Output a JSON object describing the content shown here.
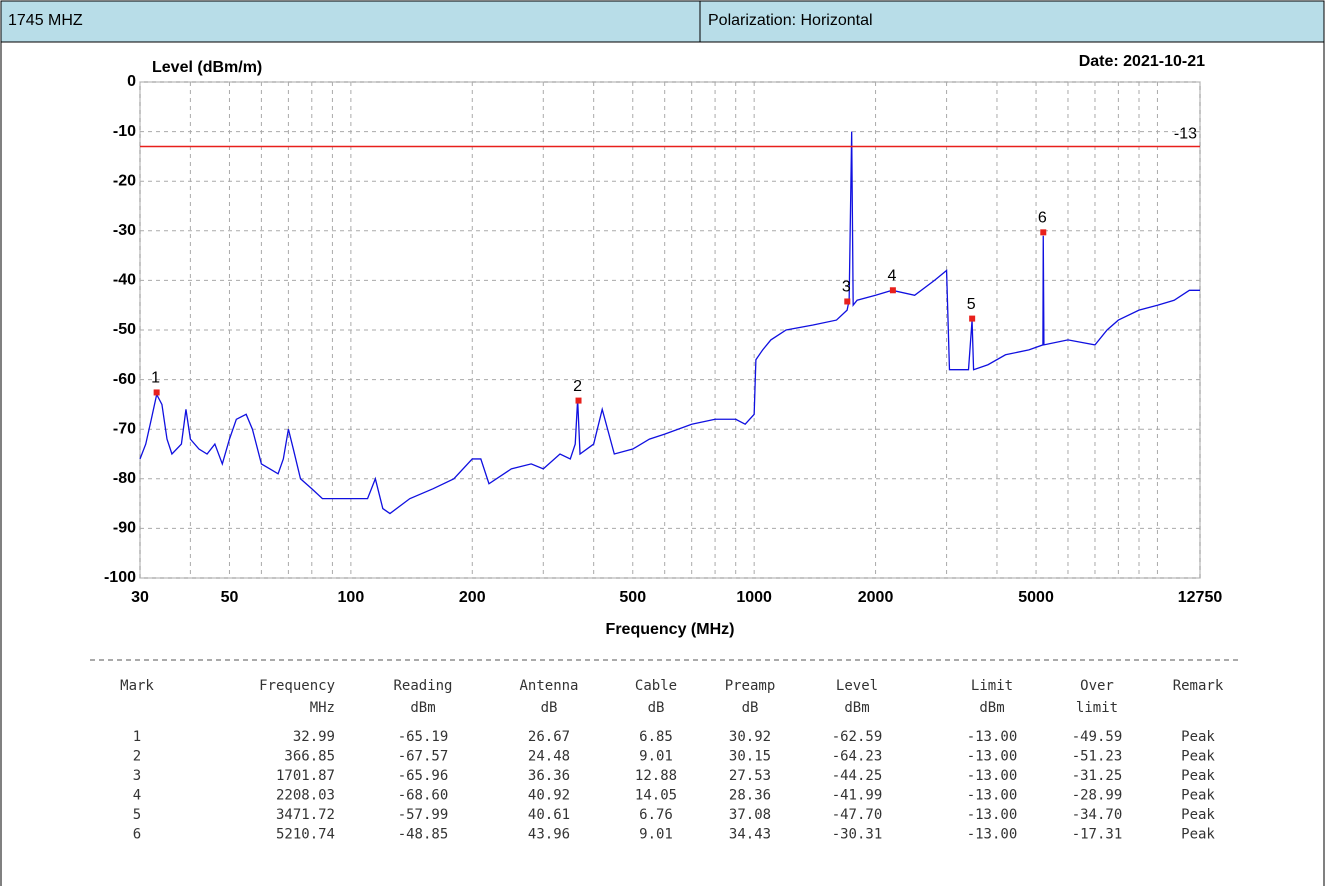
{
  "header": {
    "left": "1745 MHZ",
    "right": "Polarization: Horizontal"
  },
  "chart_data": {
    "type": "line",
    "y_label": "Level (dBm/m)",
    "x_label": "Frequency (MHz)",
    "date": "Date: 2021-10-21",
    "xscale": "log",
    "grid": true,
    "xlim": [
      30,
      12750
    ],
    "xticks": [
      30,
      50,
      100,
      200,
      500,
      1000,
      2000,
      5000,
      12750
    ],
    "xminorticks": [
      40,
      60,
      70,
      80,
      90,
      300,
      400,
      600,
      700,
      800,
      900,
      3000,
      4000,
      6000,
      7000,
      8000,
      9000,
      10000
    ],
    "ylim": [
      -100,
      0
    ],
    "yticks": [
      0,
      -10,
      -20,
      -30,
      -40,
      -50,
      -60,
      -70,
      -80,
      -90,
      -100
    ],
    "limit": -13,
    "limit_color": "#e8201c",
    "series": [
      {
        "color": "#1010e0",
        "x": [
          30,
          31,
          32,
          33,
          34,
          35,
          36,
          38,
          39,
          40,
          42,
          44,
          46,
          48,
          50,
          52,
          55,
          57,
          60,
          63,
          66,
          68,
          70,
          72,
          75,
          80,
          85,
          90,
          100,
          110,
          115,
          120,
          125,
          140,
          160,
          180,
          200,
          210,
          220,
          250,
          280,
          300,
          330,
          350,
          360,
          365,
          370,
          400,
          420,
          450,
          500,
          550,
          600,
          700,
          800,
          900,
          950,
          1000,
          1010,
          1050,
          1100,
          1200,
          1400,
          1600,
          1700,
          1720,
          1745,
          1760,
          1800,
          2000,
          2200,
          2500,
          2800,
          3000,
          3050,
          3200,
          3400,
          3470,
          3500,
          3800,
          4200,
          4800,
          5200,
          5210,
          5230,
          6000,
          7000,
          7500,
          8000,
          9000,
          10000,
          11000,
          12000,
          12750
        ],
        "values": [
          -76,
          -73,
          -68,
          -63,
          -65,
          -72,
          -75,
          -73,
          -66,
          -72,
          -74,
          -75,
          -73,
          -77,
          -72,
          -68,
          -67,
          -70,
          -77,
          -78,
          -79,
          -76,
          -70,
          -74,
          -80,
          -82,
          -84,
          -84,
          -84,
          -84,
          -80,
          -86,
          -87,
          -84,
          -82,
          -80,
          -76,
          -76,
          -81,
          -78,
          -77,
          -78,
          -75,
          -76,
          -73,
          -64,
          -75,
          -73,
          -66,
          -75,
          -74,
          -72,
          -71,
          -69,
          -68,
          -68,
          -69,
          -67,
          -56,
          -54,
          -52,
          -50,
          -49,
          -48,
          -46,
          -44,
          -10,
          -45,
          -44,
          -43,
          -42,
          -43,
          -40,
          -38,
          -58,
          -58,
          -58,
          -48,
          -58,
          -57,
          -55,
          -54,
          -53,
          -31,
          -53,
          -52,
          -53,
          -50,
          -48,
          -46,
          -45,
          -44,
          -42,
          -42
        ]
      }
    ],
    "markers": {
      "color": "#e8201c",
      "labels": [
        "1",
        "2",
        "3",
        "4",
        "5",
        "6"
      ],
      "x": [
        32.99,
        366.85,
        1701.87,
        2208.03,
        3471.72,
        5210.74
      ],
      "values": [
        -62.59,
        -64.23,
        -44.25,
        -41.99,
        -47.7,
        -30.31
      ]
    }
  },
  "table": {
    "header": [
      [
        "Mark",
        ""
      ],
      [
        "Frequency",
        "MHz"
      ],
      [
        "Reading",
        "dBm"
      ],
      [
        "Antenna",
        "dB"
      ],
      [
        "Cable",
        "dB"
      ],
      [
        "Preamp",
        "dB"
      ],
      [
        "Level",
        "dBm"
      ],
      [
        "Limit",
        "dBm"
      ],
      [
        "Over",
        "limit"
      ],
      [
        "Remark",
        ""
      ]
    ],
    "rows": [
      [
        "1",
        "32.99",
        "-65.19",
        "26.67",
        "6.85",
        "30.92",
        "-62.59",
        "-13.00",
        "-49.59",
        "Peak"
      ],
      [
        "2",
        "366.85",
        "-67.57",
        "24.48",
        "9.01",
        "30.15",
        "-64.23",
        "-13.00",
        "-51.23",
        "Peak"
      ],
      [
        "3",
        "1701.87",
        "-65.96",
        "36.36",
        "12.88",
        "27.53",
        "-44.25",
        "-13.00",
        "-31.25",
        "Peak"
      ],
      [
        "4",
        "2208.03",
        "-68.60",
        "40.92",
        "14.05",
        "28.36",
        "-41.99",
        "-13.00",
        "-28.99",
        "Peak"
      ],
      [
        "5",
        "3471.72",
        "-57.99",
        "40.61",
        "6.76",
        "37.08",
        "-47.70",
        "-13.00",
        "-34.70",
        "Peak"
      ],
      [
        "6",
        "5210.74",
        "-48.85",
        "43.96",
        "9.01",
        "34.43",
        "-30.31",
        "-13.00",
        "-17.31",
        "Peak"
      ]
    ]
  }
}
